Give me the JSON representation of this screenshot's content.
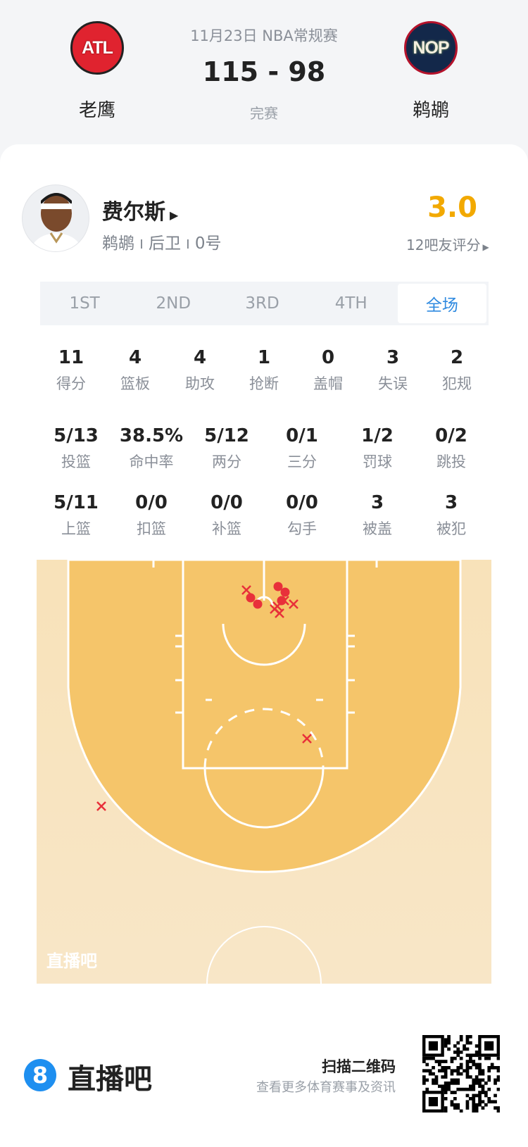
{
  "match": {
    "date_league": "11月23日 NBA常规赛",
    "score": "115 - 98",
    "status": "完赛",
    "home": {
      "name": "老鹰",
      "abbr": "ATL",
      "color": "#e0232f"
    },
    "away": {
      "name": "鹈鹕",
      "abbr": "NOP",
      "color": "#13284a"
    }
  },
  "player": {
    "name": "费尔斯",
    "team": "鹈鹕",
    "position": "后卫",
    "number": "0号",
    "rating": "3.0",
    "rating_count": "12吧友评分",
    "rating_color": "#f2a900"
  },
  "tabs": [
    {
      "label": "1ST"
    },
    {
      "label": "2ND"
    },
    {
      "label": "3RD"
    },
    {
      "label": "4TH"
    },
    {
      "label": "全场",
      "active": true
    }
  ],
  "stats_row1": [
    {
      "v": "11",
      "l": "得分"
    },
    {
      "v": "4",
      "l": "篮板"
    },
    {
      "v": "4",
      "l": "助攻"
    },
    {
      "v": "1",
      "l": "抢断"
    },
    {
      "v": "0",
      "l": "盖帽"
    },
    {
      "v": "3",
      "l": "失误"
    },
    {
      "v": "2",
      "l": "犯规"
    }
  ],
  "stats_row2": [
    {
      "v": "5/13",
      "l": "投篮"
    },
    {
      "v": "38.5%",
      "l": "命中率"
    },
    {
      "v": "5/12",
      "l": "两分"
    },
    {
      "v": "0/1",
      "l": "三分"
    },
    {
      "v": "1/2",
      "l": "罚球"
    },
    {
      "v": "0/2",
      "l": "跳投"
    }
  ],
  "stats_row3": [
    {
      "v": "5/11",
      "l": "上篮"
    },
    {
      "v": "0/0",
      "l": "扣篮"
    },
    {
      "v": "0/0",
      "l": "补篮"
    },
    {
      "v": "0/0",
      "l": "勾手"
    },
    {
      "v": "3",
      "l": "被盖"
    },
    {
      "v": "3",
      "l": "被犯"
    }
  ],
  "shot_chart": {
    "watermark": "直播吧",
    "made_color": "#e8303a",
    "miss_color": "#e8303a",
    "made": 5,
    "attempts": 13
  },
  "footer": {
    "brand": "直播吧",
    "brand_icon": "8",
    "scan": "扫描二维码",
    "desc": "查看更多体育赛事及资讯"
  }
}
